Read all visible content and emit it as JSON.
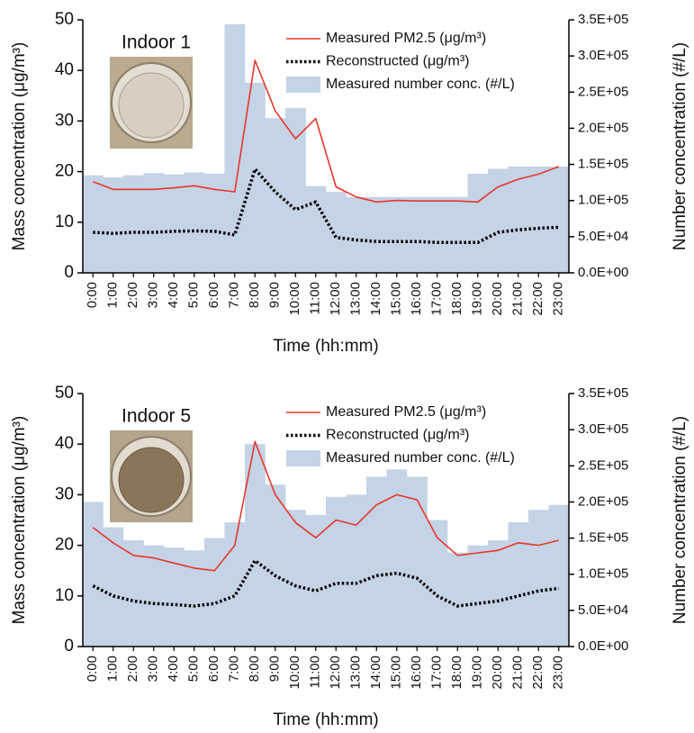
{
  "chart_data": [
    {
      "type": "combo",
      "title": "Indoor 1",
      "x_label": "Time (hh:mm)",
      "y_label": "Mass concentration (μg/m³)",
      "y2_label": "Number concentration (#/L)",
      "categories": [
        "0:00",
        "1:00",
        "2:00",
        "3:00",
        "4:00",
        "5:00",
        "6:00",
        "7:00",
        "8:00",
        "9:00",
        "10:00",
        "11:00",
        "12:00",
        "13:00",
        "14:00",
        "15:00",
        "16:00",
        "17:00",
        "18:00",
        "19:00",
        "20:00",
        "21:00",
        "22:00",
        "23:00"
      ],
      "ylim": [
        0,
        50
      ],
      "yticks": [
        0,
        10,
        20,
        30,
        40,
        50
      ],
      "y2lim": [
        0,
        350000
      ],
      "y2ticks": [
        {
          "value": 0,
          "label": "0.0E+00"
        },
        {
          "value": 50000,
          "label": "5.0E+04"
        },
        {
          "value": 100000,
          "label": "1.0E+05"
        },
        {
          "value": 150000,
          "label": "1.5E+05"
        },
        {
          "value": 200000,
          "label": "2.0E+05"
        },
        {
          "value": 250000,
          "label": "2.5E+05"
        },
        {
          "value": 300000,
          "label": "3.0E+05"
        },
        {
          "value": 350000,
          "label": "3.5E+05"
        }
      ],
      "series": [
        {
          "name": "Measured PM2.5 (μg/m³)",
          "type": "line",
          "color": "#e8362a",
          "values": [
            18,
            16.5,
            16.5,
            16.5,
            16.8,
            17.2,
            16.5,
            16,
            42,
            32,
            26.5,
            30.5,
            17,
            15,
            14,
            14.3,
            14.2,
            14.2,
            14.2,
            14,
            17,
            18.5,
            19.5,
            21
          ]
        },
        {
          "name": "Reconstructed (μg/m³)",
          "type": "line",
          "style": "dotted",
          "color": "#000000",
          "values": [
            8,
            7.8,
            8,
            8,
            8.2,
            8.3,
            8.2,
            7.5,
            20.5,
            16,
            12.5,
            14,
            7,
            6.5,
            6.2,
            6.2,
            6.2,
            6,
            6,
            6,
            8,
            8.5,
            8.8,
            9
          ]
        },
        {
          "name": "Measured  number conc. (#/L)",
          "type": "bar",
          "axis": "y2",
          "color": "#c5d3e6",
          "values": [
            135000,
            132000,
            135000,
            138000,
            136000,
            139000,
            137000,
            344000,
            263000,
            214000,
            228000,
            120000,
            112000,
            105000,
            105000,
            105000,
            105000,
            105000,
            105000,
            137000,
            144000,
            147000,
            147000,
            147000
          ]
        }
      ]
    },
    {
      "type": "combo",
      "title": "Indoor 5",
      "x_label": "Time (hh:mm)",
      "y_label": "Mass concentration (μg/m³)",
      "y2_label": "Number concentration (#/L)",
      "categories": [
        "0:00",
        "1:00",
        "2:00",
        "3:00",
        "4:00",
        "5:00",
        "6:00",
        "7:00",
        "8:00",
        "9:00",
        "10:00",
        "11:00",
        "12:00",
        "13:00",
        "14:00",
        "15:00",
        "16:00",
        "17:00",
        "18:00",
        "19:00",
        "20:00",
        "21:00",
        "22:00",
        "23:00"
      ],
      "ylim": [
        0,
        50
      ],
      "yticks": [
        0,
        10,
        20,
        30,
        40,
        50
      ],
      "y2lim": [
        0,
        350000
      ],
      "y2ticks": [
        {
          "value": 0,
          "label": "0.0E+00"
        },
        {
          "value": 50000,
          "label": "5.0E+04"
        },
        {
          "value": 100000,
          "label": "1.0E+05"
        },
        {
          "value": 150000,
          "label": "1.5E+05"
        },
        {
          "value": 200000,
          "label": "2.0E+05"
        },
        {
          "value": 250000,
          "label": "2.5E+05"
        },
        {
          "value": 300000,
          "label": "3.0E+05"
        },
        {
          "value": 350000,
          "label": "3.5E+05"
        }
      ],
      "series": [
        {
          "name": "Measured PM2.5 (μg/m³)",
          "type": "line",
          "color": "#e8362a",
          "values": [
            23.5,
            20.5,
            18,
            17.5,
            16.5,
            15.5,
            15,
            20,
            40.5,
            30,
            24.5,
            21.5,
            25,
            24,
            28,
            30,
            29,
            21.5,
            18,
            18.5,
            19,
            20.5,
            20,
            21
          ]
        },
        {
          "name": "Reconstructed (μg/m³)",
          "type": "line",
          "style": "dotted",
          "color": "#000000",
          "values": [
            12,
            10,
            9,
            8.5,
            8.3,
            8,
            8.5,
            10,
            17,
            14,
            12,
            11,
            12.5,
            12.5,
            14,
            14.5,
            13.5,
            10,
            8,
            8.5,
            9,
            10,
            11,
            11.5
          ]
        },
        {
          "name": "Measured  number conc. (#/L)",
          "type": "bar",
          "axis": "y2",
          "color": "#c5d3e6",
          "values": [
            200000,
            165000,
            147000,
            140000,
            137000,
            133000,
            150000,
            172000,
            280000,
            224000,
            189000,
            182000,
            207000,
            210000,
            235000,
            245000,
            235000,
            175000,
            130000,
            140000,
            147000,
            172000,
            189000,
            196000
          ]
        }
      ]
    }
  ]
}
